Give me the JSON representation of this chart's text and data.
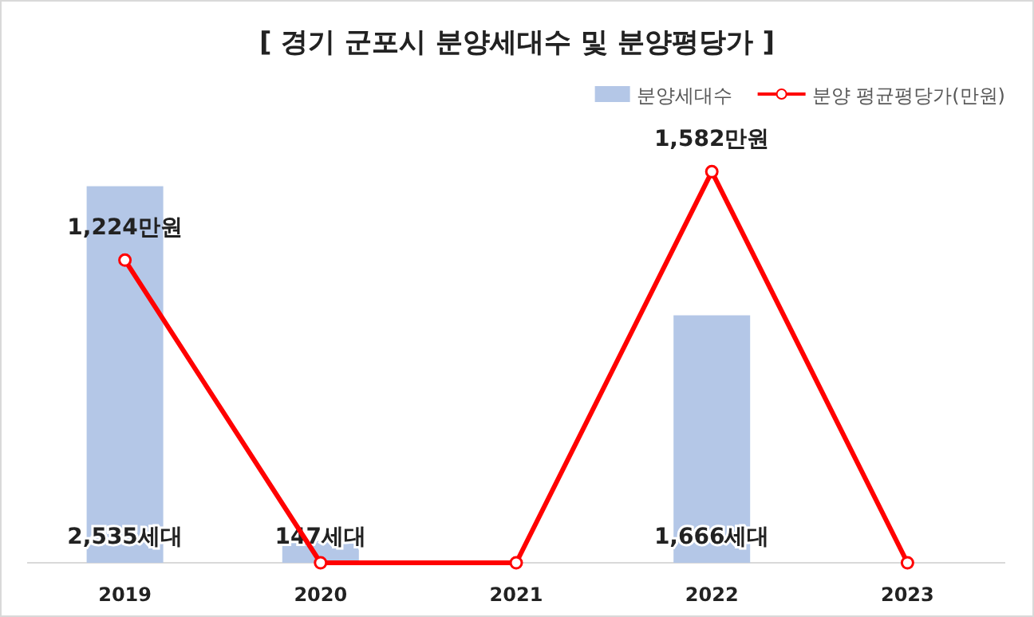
{
  "chart_data": {
    "type": "bar",
    "title": "[ 경기 군포시 분양세대수 및 분양평당가 ]",
    "categories": [
      "2019",
      "2020",
      "2021",
      "2022",
      "2023"
    ],
    "legend": "top right",
    "marker": "circle",
    "series": [
      {
        "name": "분양세대수",
        "color": "#b4c7e7",
        "values": [
          2535,
          147,
          null,
          1666,
          null
        ],
        "value_labels": [
          "2,535세대",
          "147세대",
          null,
          "1,666세대",
          null
        ]
      },
      {
        "name": "분양 평균평당가(만원)",
        "type": "line",
        "axis": "y2",
        "color": "#ff0000",
        "values": [
          1224,
          0,
          0,
          1582,
          0
        ],
        "value_labels": [
          "1,224만원",
          null,
          null,
          "1,582만원",
          null
        ]
      }
    ]
  }
}
